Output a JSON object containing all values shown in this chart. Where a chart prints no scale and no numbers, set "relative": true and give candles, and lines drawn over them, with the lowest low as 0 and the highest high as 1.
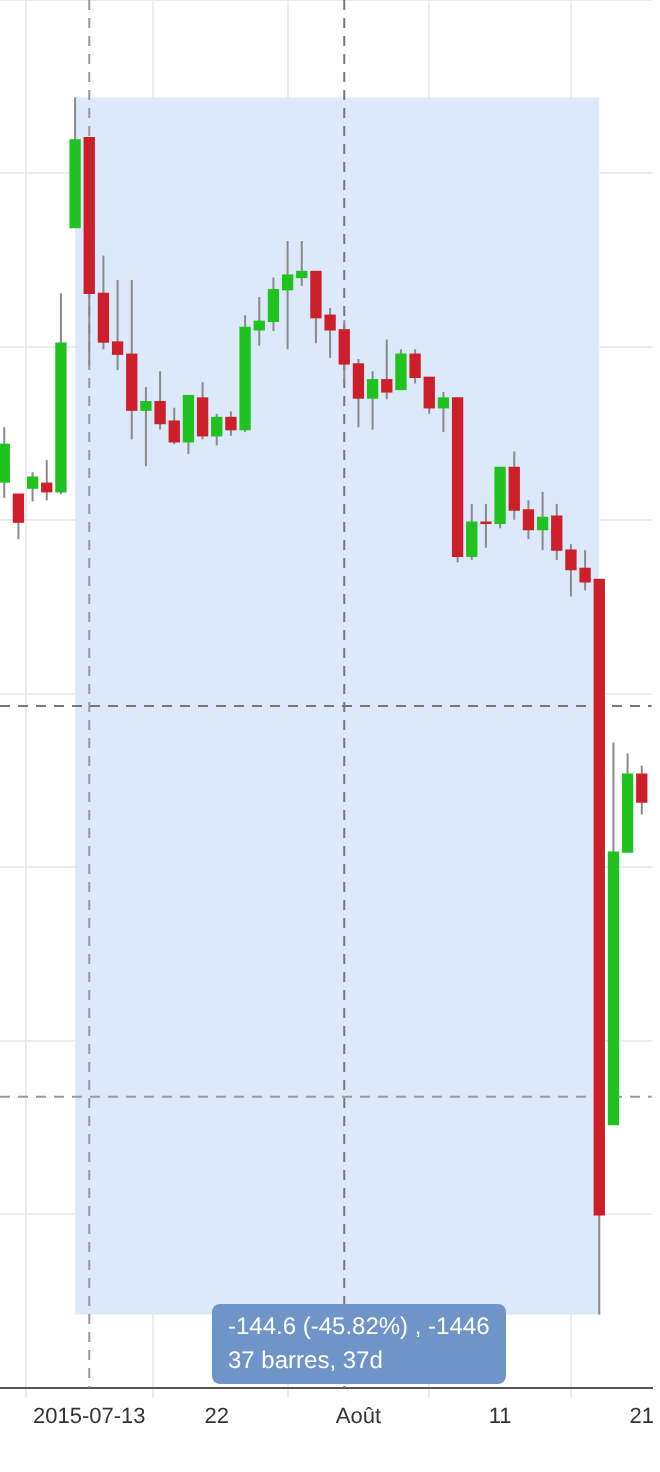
{
  "chart_data": {
    "type": "candlestick",
    "relative": true,
    "x": [
      "2015-07-07",
      "2015-07-08",
      "2015-07-09",
      "2015-07-10",
      "2015-07-11",
      "2015-07-12",
      "2015-07-13",
      "2015-07-14",
      "2015-07-15",
      "2015-07-16",
      "2015-07-17",
      "2015-07-18",
      "2015-07-19",
      "2015-07-20",
      "2015-07-21",
      "2015-07-22",
      "2015-07-23",
      "2015-07-24",
      "2015-07-25",
      "2015-07-26",
      "2015-07-27",
      "2015-07-28",
      "2015-07-29",
      "2015-07-30",
      "2015-07-31",
      "2015-08-01",
      "2015-08-02",
      "2015-08-03",
      "2015-08-04",
      "2015-08-05",
      "2015-08-06",
      "2015-08-07",
      "2015-08-08",
      "2015-08-09",
      "2015-08-10",
      "2015-08-11",
      "2015-08-12",
      "2015-08-13",
      "2015-08-14",
      "2015-08-15",
      "2015-08-16",
      "2015-08-17",
      "2015-08-18",
      "2015-08-19",
      "2015-08-20",
      "2015-08-21"
    ],
    "ohlc": [
      [
        0.684,
        0.729,
        0.671,
        0.715
      ],
      [
        0.674,
        0.674,
        0.637,
        0.651
      ],
      [
        0.679,
        0.692,
        0.668,
        0.688
      ],
      [
        0.683,
        0.702,
        0.669,
        0.676
      ],
      [
        0.676,
        0.839,
        0.674,
        0.798
      ],
      [
        0.893,
        1,
        0.893,
        0.965
      ],
      [
        0.967,
        0.967,
        0.78,
        0.839
      ],
      [
        0.839,
        0.87,
        0.793,
        0.799
      ],
      [
        0.799,
        0.85,
        0.776,
        0.789
      ],
      [
        0.789,
        0.85,
        0.719,
        0.743
      ],
      [
        0.743,
        0.762,
        0.697,
        0.75
      ],
      [
        0.75,
        0.775,
        0.727,
        0.732
      ],
      [
        0.734,
        0.745,
        0.715,
        0.717
      ],
      [
        0.717,
        0.755,
        0.707,
        0.755
      ],
      [
        0.753,
        0.766,
        0.719,
        0.722
      ],
      [
        0.722,
        0.74,
        0.714,
        0.737
      ],
      [
        0.737,
        0.742,
        0.722,
        0.727
      ],
      [
        0.727,
        0.821,
        0.725,
        0.811
      ],
      [
        0.809,
        0.836,
        0.796,
        0.816
      ],
      [
        0.816,
        0.852,
        0.808,
        0.842
      ],
      [
        0.842,
        0.882,
        0.793,
        0.854
      ],
      [
        0.852,
        0.882,
        0.845,
        0.857
      ],
      [
        0.857,
        0.857,
        0.798,
        0.819
      ],
      [
        0.821,
        0.827,
        0.786,
        0.809
      ],
      [
        0.809,
        0.817,
        0.766,
        0.781
      ],
      [
        0.781,
        0.785,
        0.729,
        0.753
      ],
      [
        0.753,
        0.775,
        0.727,
        0.768
      ],
      [
        0.768,
        0.801,
        0.752,
        0.758
      ],
      [
        0.76,
        0.793,
        0.76,
        0.789
      ],
      [
        0.789,
        0.793,
        0.765,
        0.77
      ],
      [
        0.77,
        0.77,
        0.74,
        0.745
      ],
      [
        0.745,
        0.758,
        0.725,
        0.753
      ],
      [
        0.753,
        0.753,
        0.618,
        0.623
      ],
      [
        0.623,
        0.666,
        0.62,
        0.651
      ],
      [
        0.651,
        0.666,
        0.63,
        0.65
      ],
      [
        0.65,
        0.696,
        0.646,
        0.696
      ],
      [
        0.696,
        0.709,
        0.653,
        0.661
      ],
      [
        0.661,
        0.669,
        0.637,
        0.645
      ],
      [
        0.645,
        0.676,
        0.628,
        0.655
      ],
      [
        0.656,
        0.666,
        0.62,
        0.628
      ],
      [
        0.628,
        0.633,
        0.59,
        0.612
      ],
      [
        0.613,
        0.628,
        0.595,
        0.602
      ],
      [
        0.604,
        0.604,
        0,
        0.082
      ],
      [
        0.156,
        0.47,
        0.156,
        0.38
      ],
      [
        0.38,
        0.461,
        0.38,
        0.444
      ],
      [
        0.444,
        0.451,
        0.411,
        0.421
      ]
    ],
    "colors": [
      "#1fc21f",
      "#cc1f2a",
      "#1fc21f",
      "#cc1f2a",
      "#1fc21f",
      "#1fc21f",
      "#cc1f2a",
      "#cc1f2a",
      "#cc1f2a",
      "#cc1f2a",
      "#1fc21f",
      "#cc1f2a",
      "#cc1f2a",
      "#1fc21f",
      "#cc1f2a",
      "#1fc21f",
      "#cc1f2a",
      "#1fc21f",
      "#1fc21f",
      "#1fc21f",
      "#1fc21f",
      "#1fc21f",
      "#cc1f2a",
      "#cc1f2a",
      "#cc1f2a",
      "#cc1f2a",
      "#1fc21f",
      "#cc1f2a",
      "#1fc21f",
      "#cc1f2a",
      "#cc1f2a",
      "#1fc21f",
      "#cc1f2a",
      "#1fc21f",
      "#cc1f2a",
      "#1fc21f",
      "#cc1f2a",
      "#cc1f2a",
      "#1fc21f",
      "#cc1f2a",
      "#cc1f2a",
      "#cc1f2a",
      "#cc1f2a",
      "#1fc21f",
      "#1fc21f",
      "#cc1f2a"
    ],
    "xlim": [
      "2015-07-07",
      "2015-08-21"
    ],
    "xticks": [
      {
        "value": "2015-07-13",
        "label": "2015-07-13"
      },
      {
        "value": "2015-07-22",
        "label": "22"
      },
      {
        "value": "2015-08-01",
        "label": "Août"
      },
      {
        "value": "2015-08-11",
        "label": "11"
      },
      {
        "value": "2015-08-21",
        "label": "21"
      }
    ],
    "bands": [
      {
        "axis": "x",
        "from": "2015-07-12",
        "to": "2015-08-18",
        "color": "#dce9fb"
      }
    ],
    "ref_lines": [
      {
        "axis": "x",
        "value": "2015-07-13",
        "color": "#999999",
        "line_style": "dashed"
      },
      {
        "axis": "x",
        "value": "2015-07-31",
        "color": "#777777",
        "line_style": "dashed"
      },
      {
        "axis": "y",
        "value": 0.5,
        "color": "#777777",
        "line_style": "dashed"
      },
      {
        "axis": "y",
        "value": 0.179,
        "color": "#999999",
        "line_style": "dashed"
      }
    ],
    "annotations": [
      "-144.6 (-45.82%) , -1446",
      "37 barres, 37d"
    ],
    "grid": true
  }
}
